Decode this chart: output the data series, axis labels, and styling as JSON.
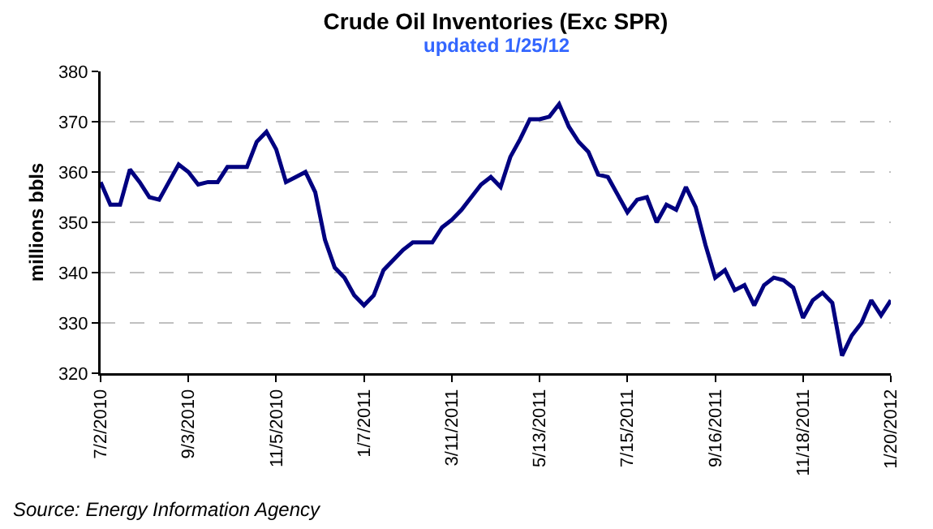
{
  "chart_data": {
    "type": "line",
    "title": "Crude Oil Inventories (Exc SPR)",
    "subtitle": "updated 1/25/12",
    "ylabel": "millions bbls",
    "annotations": [
      "Source: Energy Information Agency"
    ],
    "x": [
      "2010-07-02",
      "2010-07-09",
      "2010-07-16",
      "2010-07-23",
      "2010-07-30",
      "2010-08-06",
      "2010-08-13",
      "2010-08-20",
      "2010-08-27",
      "2010-09-03",
      "2010-09-10",
      "2010-09-17",
      "2010-09-24",
      "2010-10-01",
      "2010-10-08",
      "2010-10-15",
      "2010-10-22",
      "2010-10-29",
      "2010-11-05",
      "2010-11-12",
      "2010-11-19",
      "2010-11-26",
      "2010-12-03",
      "2010-12-10",
      "2010-12-17",
      "2010-12-24",
      "2010-12-31",
      "2011-01-07",
      "2011-01-14",
      "2011-01-21",
      "2011-01-28",
      "2011-02-04",
      "2011-02-11",
      "2011-02-18",
      "2011-02-25",
      "2011-03-04",
      "2011-03-11",
      "2011-03-18",
      "2011-03-25",
      "2011-04-01",
      "2011-04-08",
      "2011-04-15",
      "2011-04-22",
      "2011-04-29",
      "2011-05-06",
      "2011-05-13",
      "2011-05-20",
      "2011-05-27",
      "2011-06-03",
      "2011-06-10",
      "2011-06-17",
      "2011-06-24",
      "2011-07-01",
      "2011-07-08",
      "2011-07-15",
      "2011-07-22",
      "2011-07-29",
      "2011-08-05",
      "2011-08-12",
      "2011-08-19",
      "2011-08-26",
      "2011-09-02",
      "2011-09-09",
      "2011-09-16",
      "2011-09-23",
      "2011-09-30",
      "2011-10-07",
      "2011-10-14",
      "2011-10-21",
      "2011-10-28",
      "2011-11-04",
      "2011-11-11",
      "2011-11-18",
      "2011-11-25",
      "2011-12-02",
      "2011-12-09",
      "2011-12-16",
      "2011-12-23",
      "2011-12-30",
      "2012-01-06",
      "2012-01-13",
      "2012-01-20"
    ],
    "series": [
      {
        "color": "#000080",
        "values": [
          358,
          353.5,
          353.5,
          360.5,
          358,
          355,
          354.5,
          358,
          361.5,
          360,
          357.5,
          358,
          358,
          361,
          361,
          361,
          366,
          368,
          364.5,
          358,
          359,
          360,
          356,
          346.5,
          341,
          339,
          335.5,
          333.5,
          335.5,
          340.5,
          342.5,
          344.5,
          346,
          346,
          346,
          349,
          350.5,
          352.5,
          355,
          357.5,
          359,
          357,
          363,
          366.5,
          370.5,
          370.5,
          371,
          373.5,
          369,
          366,
          364,
          359.5,
          359,
          355.5,
          352,
          354.5,
          355,
          350,
          353.5,
          352.5,
          357,
          353,
          345.5,
          339,
          340.5,
          336.5,
          337.5,
          333.5,
          337.5,
          339,
          338.5,
          337,
          331,
          334.5,
          336,
          334,
          323.5,
          327.5,
          330,
          334.5,
          331.5,
          334.5
        ]
      }
    ],
    "ylim": [
      320,
      380
    ],
    "yticks": [
      320,
      330,
      340,
      350,
      360,
      370,
      380
    ],
    "xlim": [
      "2010-07-02",
      "2012-01-20"
    ],
    "xticks": [
      {
        "value": "2010-07-02",
        "label": "7/2/2010"
      },
      {
        "value": "2010-09-03",
        "label": "9/3/2010"
      },
      {
        "value": "2010-11-05",
        "label": "11/5/2010"
      },
      {
        "value": "2011-01-07",
        "label": "1/7/2011"
      },
      {
        "value": "2011-03-11",
        "label": "3/11/2011"
      },
      {
        "value": "2011-05-13",
        "label": "5/13/2011"
      },
      {
        "value": "2011-07-15",
        "label": "7/15/2011"
      },
      {
        "value": "2011-09-16",
        "label": "9/16/2011"
      },
      {
        "value": "2011-11-18",
        "label": "11/18/2011"
      },
      {
        "value": "2012-01-20",
        "label": "1/20/2012"
      }
    ],
    "grid": "y",
    "line_style": "solid",
    "marker": "none"
  }
}
